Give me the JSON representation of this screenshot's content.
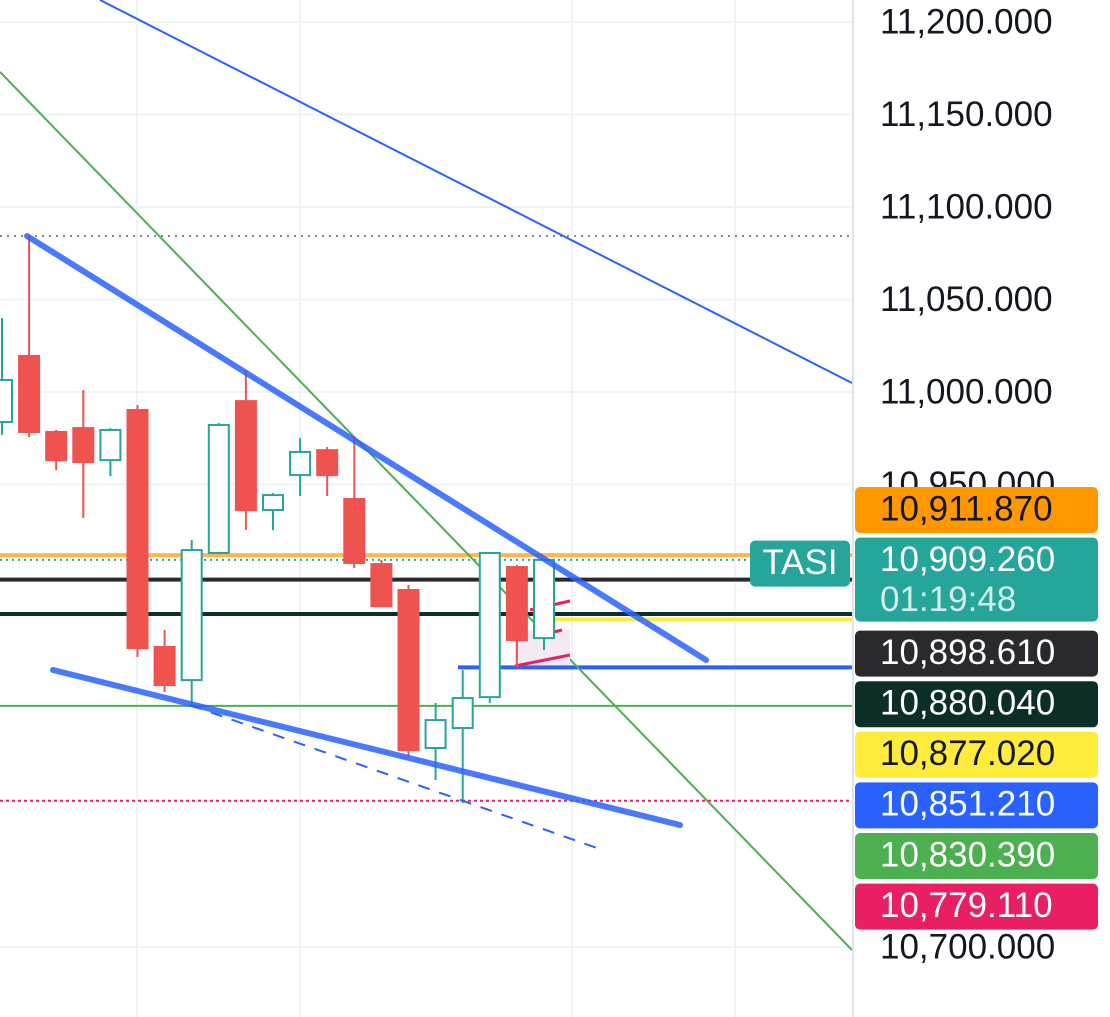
{
  "chart_data": {
    "type": "candlestick",
    "up_color": "#26a69a",
    "down_color": "#ef5350",
    "open": [
      10983.8,
      11019.5,
      10978.4,
      10980.5,
      10963.2,
      10990.3,
      10862.2,
      10844.3,
      10913.0,
      10995.1,
      10936.2,
      10955.1,
      10968.6,
      10942.2,
      10907.0,
      10893.0,
      10807.6,
      10818.4,
      10835.1,
      10905.4,
      10867.0
    ],
    "high": [
      11040.0,
      11084.3,
      10979.5,
      11001.1,
      10980.5,
      10993.0,
      10871.4,
      10920.0,
      10983.2,
      11011.9,
      10945.4,
      10975.1,
      10970.3,
      10976.2,
      10909.2,
      10895.7,
      10831.9,
      10849.7,
      10913.0,
      10906.5,
      10910.0
    ],
    "low": [
      10976.8,
      10975.7,
      10957.8,
      10931.9,
      10954.6,
      10856.8,
      10837.8,
      10830.8,
      10913.0,
      10925.4,
      10925.4,
      10943.8,
      10943.8,
      10904.9,
      10884.3,
      10802.7,
      10790.3,
      10777.8,
      10831.9,
      10851.4,
      10860.5
    ],
    "close": [
      11006.5,
      10978.4,
      10963.2,
      10962.2,
      10979.5,
      10861.6,
      10841.6,
      10914.6,
      10982.2,
      10936.2,
      10944.3,
      10967.6,
      10955.1,
      10907.6,
      10884.3,
      10806.5,
      10822.7,
      10834.6,
      10913.0,
      10865.9,
      10909.26
    ],
    "ylim": [
      10662.2,
      11211.9
    ],
    "yticks": [
      {
        "value": 11200,
        "label": "11,200.000"
      },
      {
        "value": 11150,
        "label": "11,150.000"
      },
      {
        "value": 11100,
        "label": "11,100.000"
      },
      {
        "value": 11050,
        "label": "11,050.000"
      },
      {
        "value": 11000,
        "label": "11,000.000"
      },
      {
        "value": 10950,
        "label": "10,950.000"
      },
      {
        "value": 10700,
        "label": "10,700.000"
      }
    ],
    "grid": true,
    "symbol": "TASI",
    "countdown": "01:19:48",
    "price_lines": [
      {
        "value": 10911.87,
        "label": "10,911.870",
        "color": "#ff9800",
        "text_color": "#131722"
      },
      {
        "value": 10909.26,
        "label": "10,909.260",
        "color": "#26a69a",
        "text_color": "#ffffff"
      },
      {
        "value": 10898.61,
        "label": "10,898.610",
        "color": "#2a2a2e",
        "text_color": "#ffffff"
      },
      {
        "value": 10880.04,
        "label": "10,880.040",
        "color": "#0b2e26",
        "text_color": "#ffffff"
      },
      {
        "value": 10877.02,
        "label": "10,877.020",
        "color": "#ffeb3b",
        "text_color": "#131722"
      },
      {
        "value": 10851.21,
        "label": "10,851.210",
        "color": "#2962ff",
        "text_color": "#ffffff"
      },
      {
        "value": 10830.39,
        "label": "10,830.390",
        "color": "#4caf50",
        "text_color": "#ffffff"
      },
      {
        "value": 10779.11,
        "label": "10,779.110",
        "color": "#e91e63",
        "text_color": "#ffffff"
      }
    ]
  }
}
